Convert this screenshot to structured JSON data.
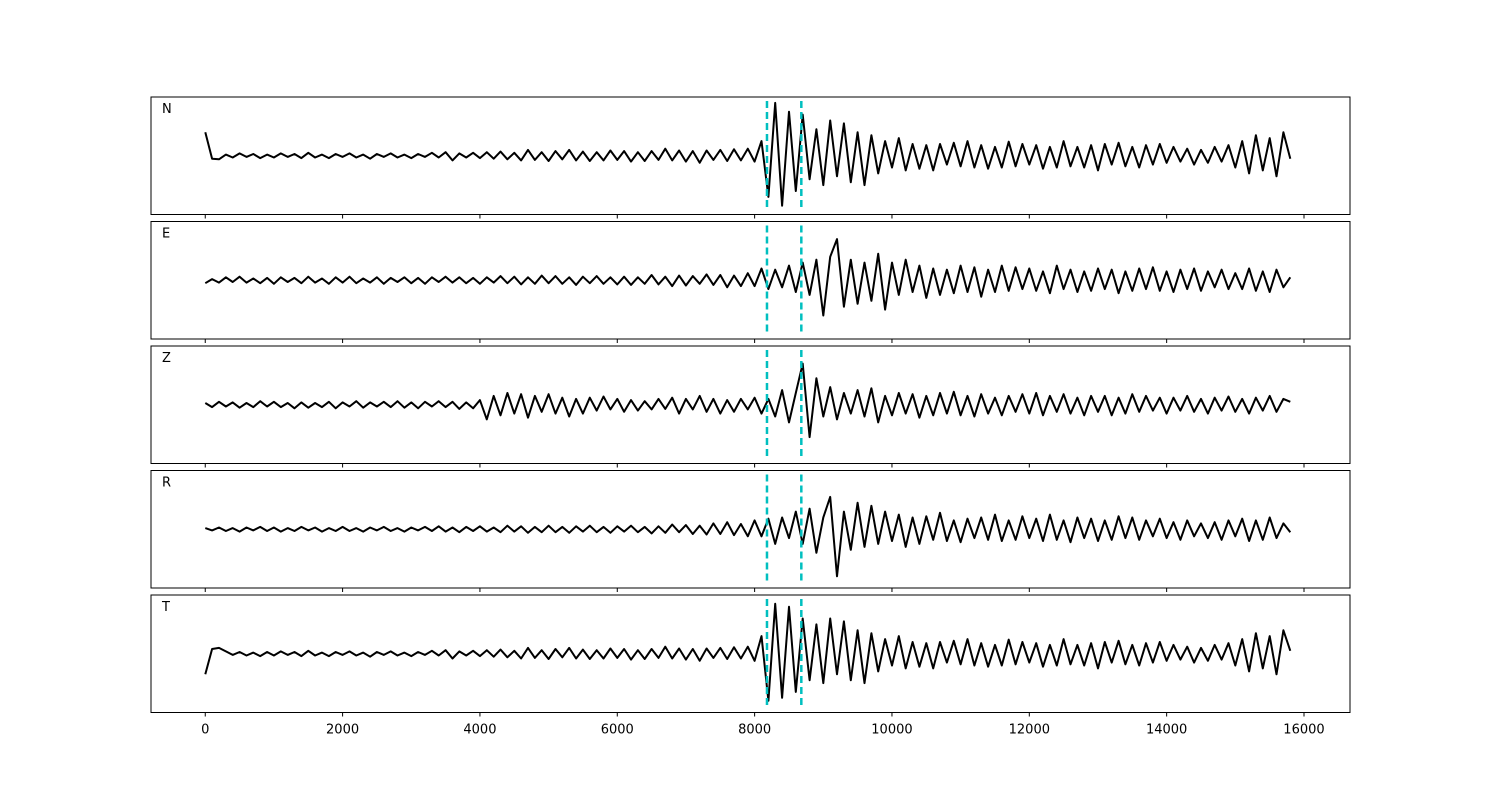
{
  "chart_data": {
    "type": "line",
    "layout": "stacked",
    "xlim": [
      -790,
      16670
    ],
    "xticks": [
      0,
      2000,
      4000,
      6000,
      8000,
      10000,
      12000,
      14000,
      16000
    ],
    "ylim": [
      -100,
      100
    ],
    "vlines": [
      8180,
      8680
    ],
    "vline_color": "#00bfbf",
    "x": [
      0,
      100,
      200,
      300,
      400,
      500,
      600,
      700,
      800,
      900,
      1000,
      1100,
      1200,
      1300,
      1400,
      1500,
      1600,
      1700,
      1800,
      1900,
      2000,
      2100,
      2200,
      2300,
      2400,
      2500,
      2600,
      2700,
      2800,
      2900,
      3000,
      3100,
      3200,
      3300,
      3400,
      3500,
      3600,
      3700,
      3800,
      3900,
      4000,
      4100,
      4200,
      4300,
      4400,
      4500,
      4600,
      4700,
      4800,
      4900,
      5000,
      5100,
      5200,
      5300,
      5400,
      5500,
      5600,
      5700,
      5800,
      5900,
      6000,
      6100,
      6200,
      6300,
      6400,
      6500,
      6600,
      6700,
      6800,
      6900,
      7000,
      7100,
      7200,
      7300,
      7400,
      7500,
      7600,
      7700,
      7800,
      7900,
      8000,
      8100,
      8200,
      8300,
      8400,
      8500,
      8600,
      8700,
      8800,
      8900,
      9000,
      9100,
      9200,
      9300,
      9400,
      9500,
      9600,
      9700,
      9800,
      9900,
      10000,
      10100,
      10200,
      10300,
      10400,
      10500,
      10600,
      10700,
      10800,
      10900,
      11000,
      11100,
      11200,
      11300,
      11400,
      11500,
      11600,
      11700,
      11800,
      11900,
      12000,
      12100,
      12200,
      12300,
      12400,
      12500,
      12600,
      12700,
      12800,
      12900,
      13000,
      13100,
      13200,
      13300,
      13400,
      13500,
      13600,
      13700,
      13800,
      13900,
      14000,
      14100,
      14200,
      14300,
      14400,
      14500,
      14600,
      14700,
      14800,
      14900,
      15000,
      15100,
      15200,
      15300,
      15400,
      15500,
      15600,
      15700,
      15800
    ],
    "series": [
      {
        "name": "N",
        "color": "#000000",
        "values": [
          40,
          -5,
          -6,
          2,
          -3,
          4,
          -2,
          3,
          -4,
          2,
          -3,
          4,
          -2,
          3,
          -4,
          5,
          -3,
          2,
          -4,
          3,
          -2,
          4,
          -3,
          2,
          -5,
          3,
          -2,
          4,
          -3,
          2,
          -4,
          3,
          -2,
          5,
          -3,
          6,
          -8,
          4,
          -3,
          5,
          -4,
          6,
          -5,
          7,
          -6,
          5,
          -8,
          10,
          -7,
          6,
          -9,
          8,
          -6,
          10,
          -8,
          7,
          -9,
          6,
          -8,
          9,
          -7,
          8,
          -10,
          6,
          -9,
          8,
          -7,
          12,
          -8,
          9,
          -10,
          8,
          -12,
          9,
          -7,
          10,
          -9,
          11,
          -8,
          12,
          -10,
          25,
          -70,
          90,
          -85,
          75,
          -60,
          70,
          -40,
          45,
          -50,
          60,
          -35,
          55,
          -45,
          40,
          -50,
          35,
          -30,
          25,
          -20,
          30,
          -25,
          20,
          -22,
          18,
          -25,
          20,
          -15,
          22,
          -18,
          25,
          -20,
          18,
          -22,
          15,
          -20,
          24,
          -18,
          20,
          -15,
          18,
          -22,
          15,
          -20,
          25,
          -18,
          15,
          -20,
          18,
          -25,
          20,
          -15,
          22,
          -18,
          15,
          -20,
          18,
          -15,
          20,
          -12,
          15,
          -10,
          12,
          -15,
          10,
          -12,
          15,
          -10,
          18,
          -20,
          25,
          -30,
          35,
          -25,
          30,
          -35,
          40,
          -5
        ]
      },
      {
        "name": "E",
        "color": "#000000",
        "values": [
          -5,
          2,
          -4,
          5,
          -3,
          6,
          -4,
          3,
          -5,
          4,
          -6,
          5,
          -3,
          4,
          -5,
          6,
          -4,
          3,
          -6,
          5,
          -4,
          6,
          -5,
          3,
          -4,
          5,
          -6,
          4,
          -3,
          5,
          -5,
          4,
          -6,
          5,
          -3,
          6,
          -4,
          5,
          -5,
          4,
          -6,
          5,
          -4,
          7,
          -5,
          6,
          -7,
          5,
          -6,
          8,
          -5,
          7,
          -6,
          5,
          -8,
          6,
          -5,
          7,
          -6,
          5,
          -7,
          6,
          -8,
          5,
          -6,
          9,
          -7,
          6,
          -10,
          8,
          -9,
          7,
          -6,
          10,
          -8,
          9,
          -12,
          8,
          -10,
          12,
          -10,
          20,
          -15,
          18,
          -12,
          25,
          -20,
          30,
          -25,
          35,
          -60,
          40,
          70,
          -45,
          35,
          -40,
          30,
          -35,
          45,
          -50,
          30,
          -25,
          35,
          -20,
          25,
          -30,
          20,
          -25,
          18,
          -22,
          25,
          -20,
          22,
          -28,
          18,
          -20,
          25,
          -18,
          22,
          -15,
          20,
          -18,
          15,
          -22,
          25,
          -15,
          18,
          -20,
          15,
          -18,
          20,
          -15,
          18,
          -22,
          15,
          -18,
          20,
          -15,
          22,
          -18,
          15,
          -20,
          18,
          -15,
          20,
          -18,
          15,
          -12,
          18,
          -15,
          12,
          -15,
          20,
          -18,
          15,
          -20,
          18,
          -12,
          5
        ]
      },
      {
        "name": "Z",
        "color": "#000000",
        "values": [
          3,
          -4,
          5,
          -3,
          4,
          -5,
          3,
          -4,
          6,
          -3,
          5,
          -4,
          3,
          -6,
          4,
          -5,
          3,
          -4,
          5,
          -6,
          4,
          -3,
          6,
          -5,
          4,
          -3,
          5,
          -4,
          6,
          -5,
          4,
          -6,
          5,
          -3,
          6,
          -4,
          5,
          -7,
          4,
          -6,
          8,
          -25,
          15,
          -18,
          20,
          -15,
          18,
          -22,
          15,
          -12,
          18,
          -15,
          12,
          -20,
          10,
          -15,
          12,
          -10,
          14,
          -8,
          10,
          -12,
          8,
          -10,
          6,
          -8,
          10,
          -7,
          12,
          -15,
          10,
          -8,
          15,
          -12,
          10,
          -15,
          8,
          -12,
          10,
          -8,
          12,
          -15,
          10,
          -20,
          25,
          -30,
          20,
          70,
          -55,
          45,
          -20,
          30,
          -25,
          20,
          -15,
          25,
          -20,
          28,
          -30,
          15,
          -18,
          20,
          -15,
          18,
          -22,
          15,
          -18,
          20,
          -15,
          22,
          -18,
          15,
          -20,
          18,
          -15,
          12,
          -18,
          15,
          -12,
          18,
          -15,
          20,
          -18,
          15,
          -12,
          18,
          -15,
          12,
          -18,
          15,
          -12,
          15,
          -18,
          12,
          -15,
          18,
          -12,
          15,
          -10,
          12,
          -15,
          12,
          -10,
          15,
          -12,
          10,
          -15,
          12,
          -10,
          14,
          -12,
          10,
          -15,
          12,
          -10,
          15,
          -12,
          10,
          5
        ]
      },
      {
        "name": "R",
        "color": "#000000",
        "values": [
          2,
          -2,
          3,
          -3,
          2,
          -4,
          3,
          -2,
          4,
          -3,
          3,
          -4,
          2,
          -3,
          4,
          -2,
          3,
          -4,
          2,
          -3,
          4,
          -3,
          2,
          -4,
          3,
          -2,
          4,
          -3,
          2,
          -4,
          3,
          -2,
          4,
          -3,
          5,
          -4,
          3,
          -5,
          4,
          -3,
          5,
          -4,
          3,
          -5,
          6,
          -4,
          5,
          -6,
          4,
          -5,
          6,
          -5,
          4,
          -6,
          5,
          -4,
          6,
          -5,
          4,
          -6,
          5,
          -4,
          6,
          -5,
          4,
          -7,
          5,
          -6,
          8,
          -5,
          7,
          -8,
          6,
          -9,
          10,
          -8,
          12,
          -10,
          9,
          -12,
          15,
          -12,
          18,
          -25,
          20,
          -15,
          30,
          -25,
          35,
          -40,
          20,
          55,
          -80,
          30,
          -35,
          45,
          -30,
          40,
          -25,
          30,
          -20,
          25,
          -30,
          20,
          -25,
          22,
          -18,
          28,
          -20,
          15,
          -22,
          18,
          -15,
          20,
          -18,
          25,
          -20,
          15,
          -18,
          22,
          -15,
          18,
          -20,
          25,
          -18,
          15,
          -22,
          20,
          -15,
          18,
          -20,
          15,
          -18,
          22,
          -15,
          20,
          -18,
          15,
          -12,
          18,
          -15,
          12,
          -18,
          15,
          -12,
          10,
          -15,
          12,
          -18,
          15,
          -12,
          18,
          -20,
          15,
          -18,
          20,
          -15,
          10,
          -5
        ]
      },
      {
        "name": "T",
        "color": "#000000",
        "values": [
          -35,
          8,
          10,
          4,
          -2,
          3,
          -3,
          2,
          -4,
          3,
          -3,
          4,
          -2,
          3,
          -4,
          5,
          -3,
          2,
          -4,
          3,
          -2,
          4,
          -3,
          2,
          -5,
          3,
          -2,
          4,
          -3,
          2,
          -4,
          3,
          -2,
          5,
          -3,
          6,
          -8,
          4,
          -3,
          5,
          -4,
          6,
          -5,
          7,
          -6,
          5,
          -8,
          10,
          -7,
          6,
          -9,
          8,
          -6,
          10,
          -8,
          7,
          -9,
          6,
          -8,
          9,
          -7,
          8,
          -10,
          6,
          -9,
          8,
          -7,
          12,
          -8,
          9,
          -10,
          8,
          -12,
          9,
          -7,
          10,
          -9,
          11,
          -8,
          12,
          -12,
          30,
          -80,
          85,
          -75,
          80,
          -65,
          60,
          -45,
          50,
          -50,
          60,
          -35,
          55,
          -45,
          40,
          -50,
          35,
          -30,
          25,
          -20,
          30,
          -25,
          20,
          -22,
          18,
          -25,
          20,
          -15,
          22,
          -18,
          25,
          -20,
          18,
          -22,
          15,
          -20,
          24,
          -18,
          20,
          -15,
          18,
          -22,
          15,
          -20,
          25,
          -18,
          15,
          -20,
          18,
          -25,
          20,
          -15,
          22,
          -18,
          15,
          -20,
          18,
          -15,
          20,
          -12,
          15,
          -10,
          12,
          -15,
          10,
          -12,
          15,
          -10,
          18,
          -20,
          25,
          -30,
          35,
          -25,
          30,
          -35,
          40,
          5
        ]
      }
    ]
  }
}
